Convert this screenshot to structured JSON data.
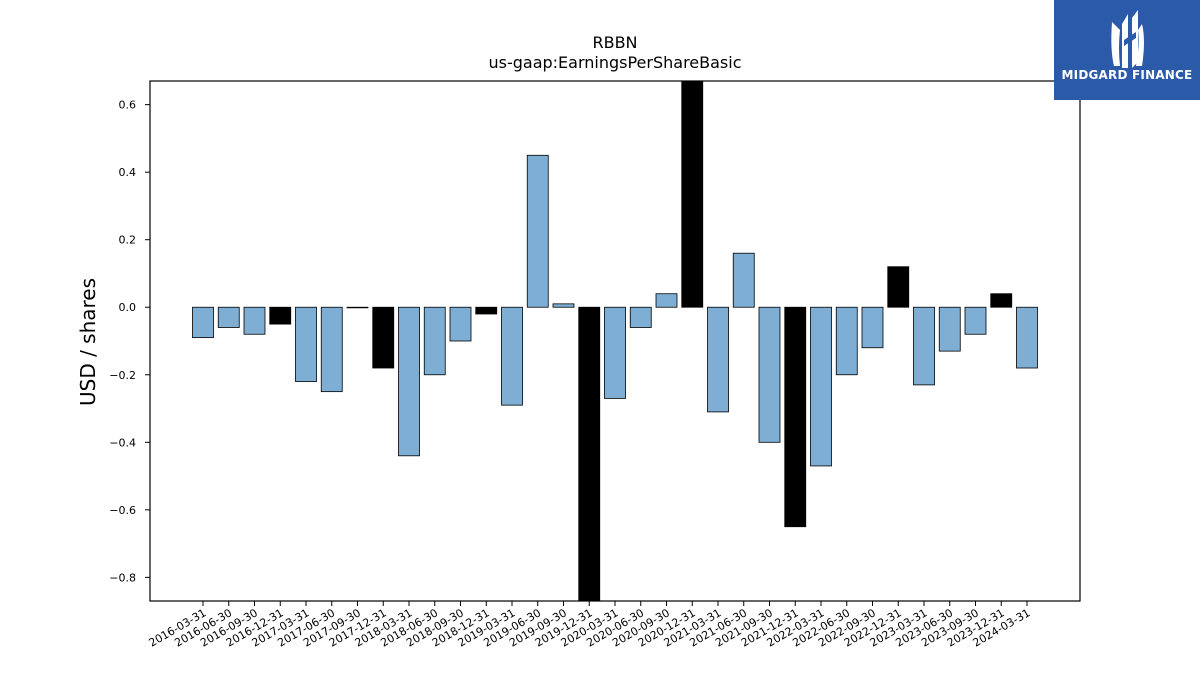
{
  "chart_data": {
    "type": "bar",
    "title": "RBBN",
    "subtitle": "us-gaap:EarningsPerShareBasic",
    "ylabel": "USD / shares",
    "xlabel": "",
    "ylim": [
      -0.87,
      0.67
    ],
    "yticks": [
      0.6,
      0.4,
      0.2,
      0.0,
      -0.2,
      -0.4,
      -0.6,
      -0.8
    ],
    "grid": false,
    "categories": [
      "2016-03-31",
      "2016-06-30",
      "2016-09-30",
      "2016-12-31",
      "2017-03-31",
      "2017-06-30",
      "2017-09-30",
      "2017-12-31",
      "2018-03-31",
      "2018-06-30",
      "2018-09-30",
      "2018-12-31",
      "2019-03-31",
      "2019-06-30",
      "2019-09-30",
      "2019-12-31",
      "2020-03-31",
      "2020-06-30",
      "2020-09-30",
      "2020-12-31",
      "2021-03-31",
      "2021-06-30",
      "2021-09-30",
      "2021-12-31",
      "2022-03-31",
      "2022-06-30",
      "2022-09-30",
      "2022-12-31",
      "2023-03-31",
      "2023-06-30",
      "2023-09-30",
      "2023-12-31",
      "2024-03-31"
    ],
    "values": [
      -0.09,
      -0.06,
      -0.08,
      -0.05,
      -0.22,
      -0.25,
      0.0,
      -0.18,
      -0.44,
      -0.2,
      -0.1,
      -0.02,
      -0.29,
      0.45,
      0.01,
      -0.88,
      -0.27,
      -0.06,
      0.04,
      0.7,
      -0.31,
      0.16,
      -0.4,
      -0.65,
      -0.47,
      -0.2,
      -0.12,
      0.12,
      -0.23,
      -0.13,
      -0.08,
      0.04,
      -0.18
    ],
    "highlighted": [
      false,
      false,
      false,
      true,
      false,
      false,
      true,
      true,
      false,
      false,
      false,
      true,
      false,
      false,
      false,
      true,
      false,
      false,
      false,
      true,
      false,
      false,
      false,
      true,
      false,
      false,
      false,
      true,
      false,
      false,
      false,
      true,
      false
    ],
    "colors": {
      "bar": "#7eaed4",
      "highlight": "#000000",
      "edge": "#000000"
    }
  },
  "logo": {
    "text": "MIDGARD FINANCE",
    "background": "#2b5aa8"
  }
}
